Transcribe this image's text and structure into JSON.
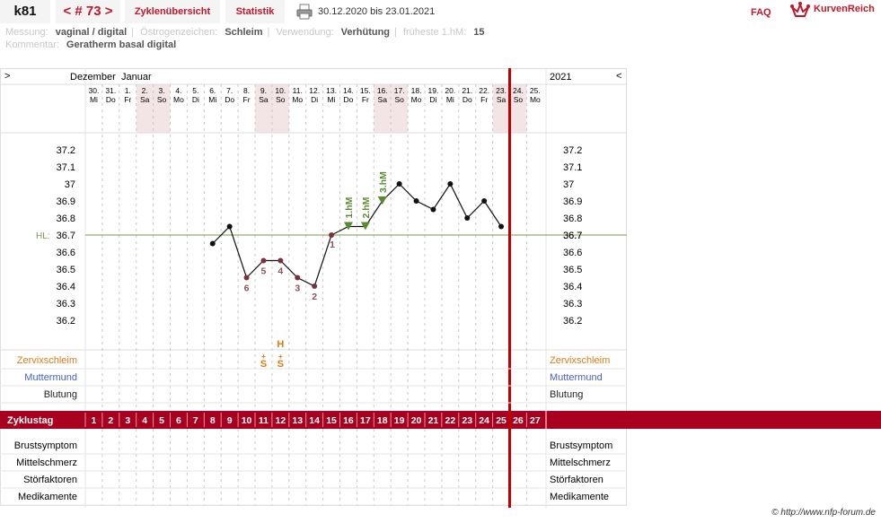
{
  "header": {
    "cycle_id": "k81",
    "cycle_nav": "< # 73 >",
    "tab_overview": "Zyklenübersicht",
    "tab_stats": "Statistik",
    "date_range": "30.12.2020 bis 23.01.2021",
    "faq": "FAQ",
    "logo_text": "KurvenReich"
  },
  "info": {
    "messung_label": "Messung:",
    "messung_value": "vaginal / digital",
    "oestrogen_label": "Östrogenzeichen:",
    "oestrogen_value": "Schleim",
    "verwendung_label": "Verwendung:",
    "verwendung_value": "Verhütung",
    "fruehe_label": "früheste 1.hM:",
    "fruehe_value": "15",
    "kommentar_label": "Kommentar:",
    "kommentar_value": "Geratherm basal digital"
  },
  "chart_data": {
    "type": "line",
    "month_left": "Dezember",
    "month_right": "Januar",
    "year": "2021",
    "nav_left": ">",
    "nav_right": "<",
    "days": [
      {
        "date": "30.",
        "dow": "Mi",
        "cycle_day": "1",
        "weekend": false
      },
      {
        "date": "31.",
        "dow": "Do",
        "cycle_day": "2",
        "weekend": false
      },
      {
        "date": "1.",
        "dow": "Fr",
        "cycle_day": "3",
        "weekend": false
      },
      {
        "date": "2.",
        "dow": "Sa",
        "cycle_day": "4",
        "weekend": true
      },
      {
        "date": "3.",
        "dow": "So",
        "cycle_day": "5",
        "weekend": true
      },
      {
        "date": "4.",
        "dow": "Mo",
        "cycle_day": "6",
        "weekend": false
      },
      {
        "date": "5.",
        "dow": "Di",
        "cycle_day": "7",
        "weekend": false
      },
      {
        "date": "6.",
        "dow": "Mi",
        "cycle_day": "8",
        "weekend": false
      },
      {
        "date": "7.",
        "dow": "Do",
        "cycle_day": "9",
        "weekend": false
      },
      {
        "date": "8.",
        "dow": "Fr",
        "cycle_day": "10",
        "weekend": false
      },
      {
        "date": "9.",
        "dow": "Sa",
        "cycle_day": "11",
        "weekend": true
      },
      {
        "date": "10.",
        "dow": "So",
        "cycle_day": "12",
        "weekend": true
      },
      {
        "date": "11.",
        "dow": "Mo",
        "cycle_day": "13",
        "weekend": false
      },
      {
        "date": "12.",
        "dow": "Di",
        "cycle_day": "14",
        "weekend": false
      },
      {
        "date": "13.",
        "dow": "Mi",
        "cycle_day": "15",
        "weekend": false
      },
      {
        "date": "14.",
        "dow": "Do",
        "cycle_day": "16",
        "weekend": false
      },
      {
        "date": "15.",
        "dow": "Fr",
        "cycle_day": "17",
        "weekend": false
      },
      {
        "date": "16.",
        "dow": "Sa",
        "cycle_day": "18",
        "weekend": true
      },
      {
        "date": "17.",
        "dow": "So",
        "cycle_day": "19",
        "weekend": true
      },
      {
        "date": "18.",
        "dow": "Mo",
        "cycle_day": "20",
        "weekend": false
      },
      {
        "date": "19.",
        "dow": "Di",
        "cycle_day": "21",
        "weekend": false
      },
      {
        "date": "20.",
        "dow": "Mi",
        "cycle_day": "22",
        "weekend": false
      },
      {
        "date": "21.",
        "dow": "Do",
        "cycle_day": "23",
        "weekend": false
      },
      {
        "date": "22.",
        "dow": "Fr",
        "cycle_day": "24",
        "weekend": false
      },
      {
        "date": "23.",
        "dow": "Sa",
        "cycle_day": "25",
        "weekend": true
      },
      {
        "date": "24.",
        "dow": "So",
        "cycle_day": "26",
        "weekend": true
      },
      {
        "date": "25.",
        "dow": "Mo",
        "cycle_day": "27",
        "weekend": false
      }
    ],
    "temperatures": [
      {
        "day": 8,
        "temp": 36.65,
        "label": ""
      },
      {
        "day": 9,
        "temp": 36.75,
        "label": ""
      },
      {
        "day": 10,
        "temp": 36.45,
        "label": "6"
      },
      {
        "day": 11,
        "temp": 36.55,
        "label": "5"
      },
      {
        "day": 12,
        "temp": 36.55,
        "label": "4"
      },
      {
        "day": 13,
        "temp": 36.45,
        "label": "3"
      },
      {
        "day": 14,
        "temp": 36.4,
        "label": "2"
      },
      {
        "day": 15,
        "temp": 36.7,
        "label": "1"
      },
      {
        "day": 16,
        "temp": 36.75,
        "label": "1.hM",
        "marker": "hm"
      },
      {
        "day": 17,
        "temp": 36.75,
        "label": "2.hM",
        "marker": "hm"
      },
      {
        "day": 18,
        "temp": 36.9,
        "label": "3.hM",
        "marker": "hm"
      },
      {
        "day": 19,
        "temp": 37.0,
        "label": ""
      },
      {
        "day": 20,
        "temp": 36.9,
        "label": ""
      },
      {
        "day": 21,
        "temp": 36.85,
        "label": ""
      },
      {
        "day": 22,
        "temp": 37.0,
        "label": ""
      },
      {
        "day": 23,
        "temp": 36.8,
        "label": ""
      },
      {
        "day": 24,
        "temp": 36.9,
        "label": ""
      },
      {
        "day": 25,
        "temp": 36.75,
        "label": ""
      }
    ],
    "y_ticks": [
      "37.2",
      "37.1",
      "37",
      "36.9",
      "36.8",
      "36.7",
      "36.6",
      "36.5",
      "36.4",
      "36.3",
      "36.2"
    ],
    "ylim": [
      36.2,
      37.2
    ],
    "coverline": {
      "label": "HL:",
      "value": 36.7
    },
    "today_day": 25,
    "mucus": [
      {
        "day": 11,
        "top": "",
        "bottom": "S",
        "mark": "+"
      },
      {
        "day": 12,
        "top": "H",
        "bottom": "S",
        "mark": "+"
      }
    ],
    "rows_upper": [
      "Zervixschleim",
      "Muttermund",
      "Blutung"
    ],
    "cycle_row_label": "Zyklustag",
    "rows_lower": [
      "Brustsymptom",
      "Mittelschmerz",
      "Störfaktoren",
      "Medikamente"
    ],
    "colors": {
      "accent": "#a8001e",
      "weekend": "#f3e4e6",
      "line": "#111111",
      "low_label": "#8a5060",
      "hm": "#5a8a30",
      "coverline": "#7a9a50",
      "today": "#c00000",
      "zervix": "#e07a10",
      "muttermund": "#4a60c0"
    }
  },
  "footer": {
    "credit": "© http://www.nfp-forum.de"
  }
}
